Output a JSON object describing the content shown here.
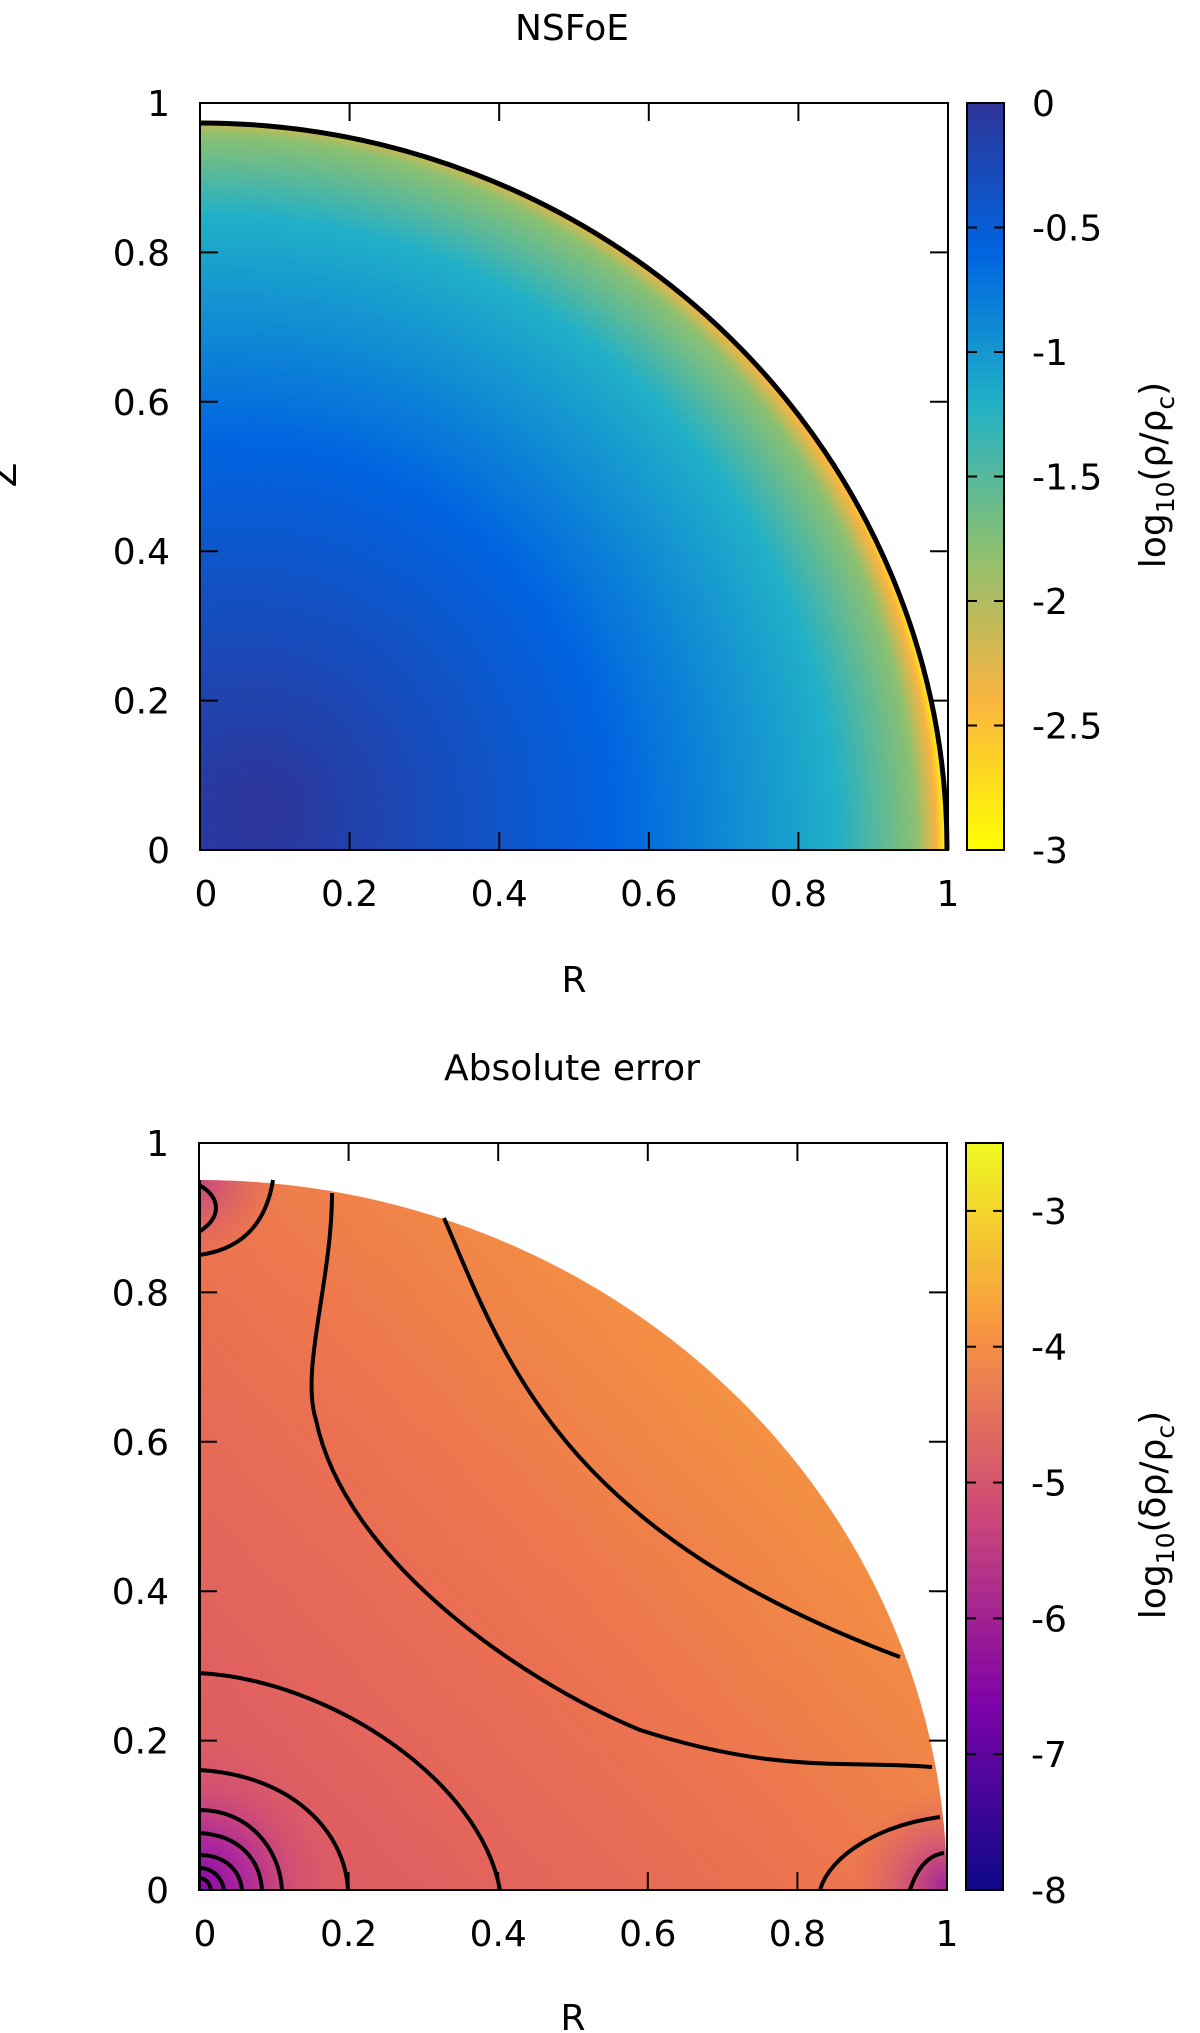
{
  "chart_data": [
    {
      "type": "heatmap",
      "title": "NSFoE",
      "xlabel": "R",
      "ylabel": "Z",
      "xlim": [
        0,
        1
      ],
      "ylim": [
        0,
        1
      ],
      "x_ticks": [
        "0",
        "0.2",
        "0.4",
        "0.6",
        "0.8",
        "1"
      ],
      "y_ticks": [
        "0",
        "0.2",
        "0.4",
        "0.6",
        "0.8",
        "1"
      ],
      "colorbar": {
        "label_main": "log",
        "label_sub": "10",
        "label_tail": "(ρ/ρ",
        "label_tail_sub": "c",
        "label_close": ")",
        "range": [
          -3,
          0
        ],
        "ticks": [
          "0",
          "-0.5",
          "-1",
          "-1.5",
          "-2",
          "-2.5",
          "-3"
        ],
        "tick_values": [
          0,
          -0.5,
          -1,
          -1.5,
          -2,
          -2.5,
          -3
        ],
        "colormap": [
          "#ffff00",
          "#fab440",
          "#8cc070",
          "#20b0c8",
          "#0064e0",
          "#2e3498"
        ]
      },
      "boundary": {
        "equatorial_radius": 1.0,
        "polar_radius": 0.95,
        "outline": "black"
      }
    },
    {
      "type": "heatmap",
      "title": "Absolute error",
      "xlabel": "R",
      "ylabel": "",
      "xlim": [
        0,
        1
      ],
      "ylim": [
        0,
        1
      ],
      "x_ticks": [
        "0",
        "0.2",
        "0.4",
        "0.6",
        "0.8",
        "1"
      ],
      "y_ticks": [
        "0",
        "0.2",
        "0.4",
        "0.6",
        "0.8",
        "1"
      ],
      "colorbar": {
        "label_main": "log",
        "label_sub": "10",
        "label_tail": "(δρ/ρ",
        "label_tail_sub": "c",
        "label_close": ")",
        "range": [
          -8,
          -2.5
        ],
        "ticks": [
          "-3",
          "-4",
          "-5",
          "-6",
          "-7",
          "-8"
        ],
        "tick_values": [
          -3,
          -4,
          -5,
          -6,
          -7,
          -8
        ],
        "colormap": [
          "#0d0887",
          "#7e03a8",
          "#cc4778",
          "#f89540",
          "#f0f921"
        ]
      },
      "boundary": {
        "equatorial_radius": 1.0,
        "polar_radius": 0.95
      },
      "contour_color": "black"
    }
  ]
}
